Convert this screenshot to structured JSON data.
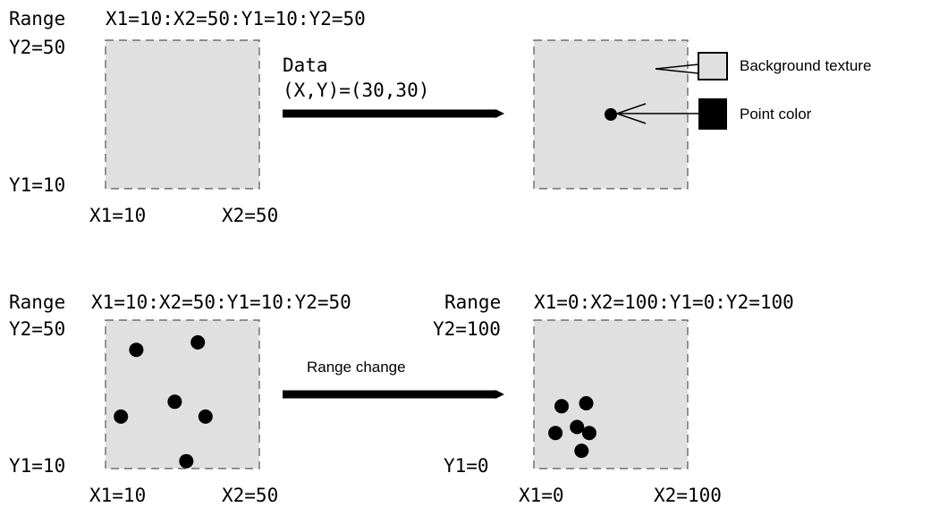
{
  "colors": {
    "plot_background": "#e0e0e0",
    "plot_border": "#555555",
    "ink": "#000000"
  },
  "panel_before_data": {
    "range_label": "Range",
    "range_spec": "X1=10:X2=50:Y1=10:Y2=50",
    "y2_label": "Y2=50",
    "y1_label": "Y1=10",
    "x1_label": "X1=10",
    "x2_label": "X2=50"
  },
  "data_arrow": {
    "label_line1": "Data",
    "label_line2": "(X,Y)=(30,30)"
  },
  "panel_after_data": {
    "point": {
      "x": 30,
      "y": 30
    },
    "x_range": [
      10,
      50
    ],
    "y_range": [
      10,
      50
    ]
  },
  "legend": {
    "background_label": "Background texture",
    "point_label": "Point color",
    "background_swatch_color": "#e0e0e0",
    "point_swatch_color": "#000000"
  },
  "panel_before_change": {
    "range_label": "Range",
    "range_spec": "X1=10:X2=50:Y1=10:Y2=50",
    "y2_label": "Y2=50",
    "y1_label": "Y1=10",
    "x1_label": "X1=10",
    "x2_label": "X2=50",
    "x_range": [
      10,
      50
    ],
    "y_range": [
      10,
      50
    ],
    "points": [
      {
        "x": 18,
        "y": 42
      },
      {
        "x": 34,
        "y": 44
      },
      {
        "x": 28,
        "y": 28
      },
      {
        "x": 14,
        "y": 24
      },
      {
        "x": 36,
        "y": 24
      },
      {
        "x": 31,
        "y": 12
      }
    ]
  },
  "range_change_arrow": {
    "label": "Range change"
  },
  "panel_after_change": {
    "range_label": "Range",
    "range_spec": "X1=0:X2=100:Y1=0:Y2=100",
    "y2_label": "Y2=100",
    "y1_label": "Y1=0",
    "x1_label": "X1=0",
    "x2_label": "X2=100",
    "x_range": [
      0,
      100
    ],
    "y_range": [
      0,
      100
    ],
    "points": [
      {
        "x": 18,
        "y": 42
      },
      {
        "x": 34,
        "y": 44
      },
      {
        "x": 28,
        "y": 28
      },
      {
        "x": 14,
        "y": 24
      },
      {
        "x": 36,
        "y": 24
      },
      {
        "x": 31,
        "y": 12
      }
    ]
  }
}
